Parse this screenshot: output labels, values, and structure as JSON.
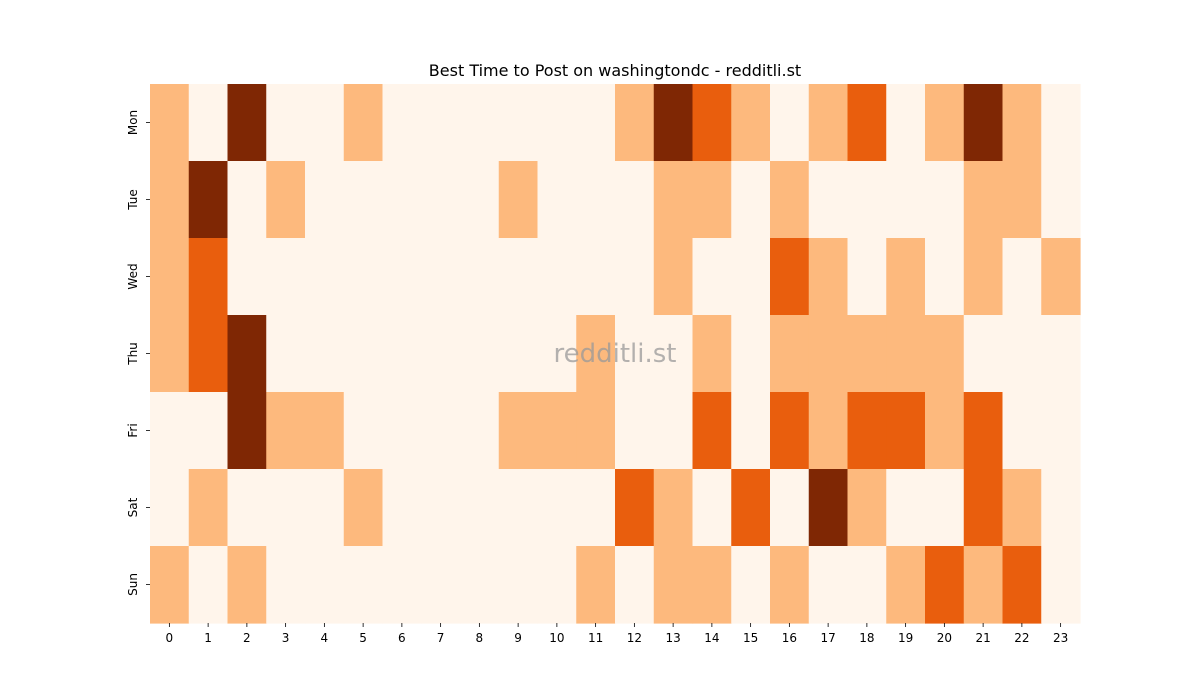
{
  "chart_data": {
    "type": "heatmap",
    "title": "Best Time to Post on washingtondc - redditli.st",
    "watermark": "redditli.st",
    "x_labels": [
      "0",
      "1",
      "2",
      "3",
      "4",
      "5",
      "6",
      "7",
      "8",
      "9",
      "10",
      "11",
      "12",
      "13",
      "14",
      "15",
      "16",
      "17",
      "18",
      "19",
      "20",
      "21",
      "22",
      "23"
    ],
    "y_labels": [
      "Mon",
      "Tue",
      "Wed",
      "Thu",
      "Fri",
      "Sat",
      "Sun"
    ],
    "levels": [
      [
        1,
        0,
        3,
        0,
        0,
        1,
        0,
        0,
        0,
        0,
        0,
        0,
        1,
        3,
        2,
        1,
        0,
        1,
        2,
        0,
        1,
        3,
        1,
        0
      ],
      [
        1,
        3,
        0,
        1,
        0,
        0,
        0,
        0,
        0,
        1,
        0,
        0,
        0,
        1,
        1,
        0,
        1,
        0,
        0,
        0,
        0,
        1,
        1,
        0
      ],
      [
        1,
        2,
        0,
        0,
        0,
        0,
        0,
        0,
        0,
        0,
        0,
        0,
        0,
        1,
        0,
        0,
        2,
        1,
        0,
        1,
        0,
        1,
        0,
        1
      ],
      [
        1,
        2,
        3,
        0,
        0,
        0,
        0,
        0,
        0,
        0,
        0,
        1,
        0,
        0,
        1,
        0,
        1,
        1,
        1,
        1,
        1,
        0,
        0,
        0
      ],
      [
        0,
        0,
        3,
        1,
        1,
        0,
        0,
        0,
        0,
        1,
        1,
        1,
        0,
        0,
        2,
        0,
        2,
        1,
        2,
        2,
        1,
        2,
        0,
        0
      ],
      [
        0,
        1,
        0,
        0,
        0,
        1,
        0,
        0,
        0,
        0,
        0,
        0,
        2,
        1,
        0,
        2,
        0,
        3,
        1,
        0,
        0,
        2,
        1,
        0
      ],
      [
        1,
        0,
        1,
        0,
        0,
        0,
        0,
        0,
        0,
        0,
        0,
        1,
        0,
        1,
        1,
        0,
        1,
        0,
        0,
        1,
        2,
        1,
        2,
        0
      ]
    ],
    "colors": [
      "#fff5eb",
      "#fdb97d",
      "#e95e0d",
      "#7f2704"
    ],
    "xlabel": "",
    "ylabel": "",
    "grid": false,
    "colorbar": false
  }
}
